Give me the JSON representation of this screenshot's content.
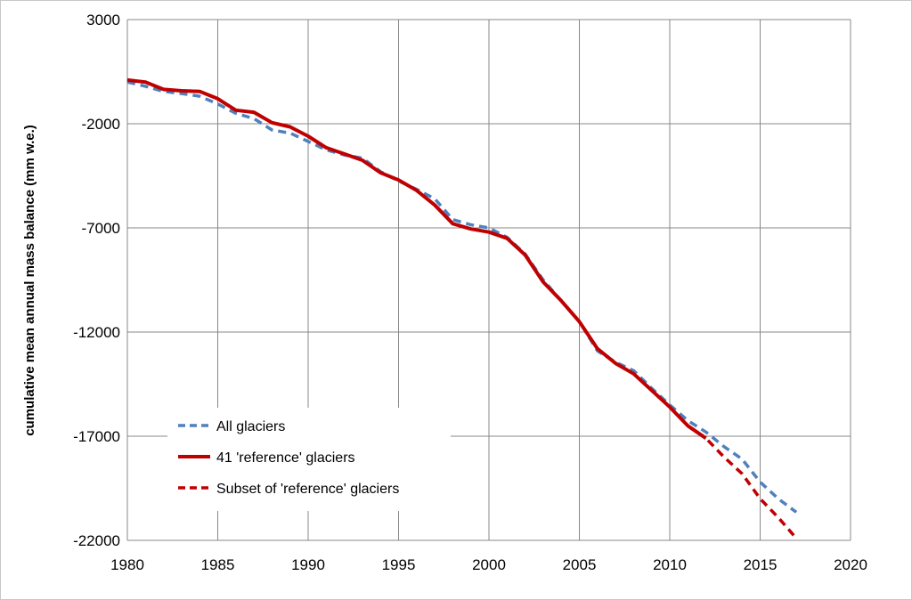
{
  "chart_data": {
    "type": "line",
    "title": "",
    "xlabel": "",
    "ylabel": "cumulative mean annual mass balance (mm w.e.)",
    "xlim": [
      1980,
      2020
    ],
    "ylim": [
      -22000,
      3000
    ],
    "xticks": [
      1980,
      1985,
      1990,
      1995,
      2000,
      2005,
      2010,
      2015,
      2020
    ],
    "yticks": [
      3000,
      -2000,
      -7000,
      -12000,
      -17000,
      -22000
    ],
    "grid": true,
    "legend_position": "bottom-left",
    "series": [
      {
        "name": "All glaciers",
        "color": "#4f81bd",
        "style": "dashed",
        "points": [
          [
            1980,
            0
          ],
          [
            1981,
            -200
          ],
          [
            1982,
            -450
          ],
          [
            1983,
            -550
          ],
          [
            1984,
            -680
          ],
          [
            1985,
            -1050
          ],
          [
            1986,
            -1500
          ],
          [
            1987,
            -1750
          ],
          [
            1988,
            -2300
          ],
          [
            1989,
            -2450
          ],
          [
            1990,
            -2850
          ],
          [
            1991,
            -3250
          ],
          [
            1992,
            -3500
          ],
          [
            1993,
            -3650
          ],
          [
            1994,
            -4300
          ],
          [
            1995,
            -4750
          ],
          [
            1996,
            -5150
          ],
          [
            1997,
            -5600
          ],
          [
            1998,
            -6600
          ],
          [
            1999,
            -6850
          ],
          [
            2000,
            -7000
          ],
          [
            2001,
            -7450
          ],
          [
            2002,
            -8250
          ],
          [
            2003,
            -9500
          ],
          [
            2004,
            -10500
          ],
          [
            2005,
            -11500
          ],
          [
            2006,
            -12900
          ],
          [
            2007,
            -13450
          ],
          [
            2008,
            -13850
          ],
          [
            2009,
            -14700
          ],
          [
            2010,
            -15500
          ],
          [
            2011,
            -16250
          ],
          [
            2012,
            -16800
          ],
          [
            2013,
            -17500
          ],
          [
            2014,
            -18100
          ],
          [
            2015,
            -19200
          ],
          [
            2016,
            -20000
          ],
          [
            2017,
            -20650
          ]
        ]
      },
      {
        "name": "41 'reference' glaciers",
        "color": "#c00000",
        "style": "solid",
        "points": [
          [
            1980,
            100
          ],
          [
            1981,
            0
          ],
          [
            1982,
            -350
          ],
          [
            1983,
            -420
          ],
          [
            1984,
            -450
          ],
          [
            1985,
            -800
          ],
          [
            1986,
            -1350
          ],
          [
            1987,
            -1450
          ],
          [
            1988,
            -1950
          ],
          [
            1989,
            -2150
          ],
          [
            1990,
            -2600
          ],
          [
            1991,
            -3150
          ],
          [
            1992,
            -3450
          ],
          [
            1993,
            -3750
          ],
          [
            1994,
            -4350
          ],
          [
            1995,
            -4700
          ],
          [
            1996,
            -5200
          ],
          [
            1997,
            -5900
          ],
          [
            1998,
            -6800
          ],
          [
            1999,
            -7050
          ],
          [
            2000,
            -7200
          ],
          [
            2001,
            -7500
          ],
          [
            2002,
            -8300
          ],
          [
            2003,
            -9600
          ],
          [
            2004,
            -10500
          ],
          [
            2005,
            -11500
          ],
          [
            2006,
            -12800
          ],
          [
            2007,
            -13500
          ],
          [
            2008,
            -14000
          ],
          [
            2009,
            -14800
          ],
          [
            2010,
            -15600
          ],
          [
            2011,
            -16500
          ],
          [
            2012,
            -17100
          ]
        ]
      },
      {
        "name": "Subset of 'reference' glaciers",
        "color": "#c00000",
        "style": "dashed",
        "points": [
          [
            1980,
            100
          ],
          [
            1981,
            0
          ],
          [
            1982,
            -350
          ],
          [
            1983,
            -420
          ],
          [
            1984,
            -450
          ],
          [
            1985,
            -800
          ],
          [
            1986,
            -1350
          ],
          [
            1987,
            -1450
          ],
          [
            1988,
            -1950
          ],
          [
            1989,
            -2150
          ],
          [
            1990,
            -2600
          ],
          [
            1991,
            -3150
          ],
          [
            1992,
            -3450
          ],
          [
            1993,
            -3750
          ],
          [
            1994,
            -4350
          ],
          [
            1995,
            -4700
          ],
          [
            1996,
            -5200
          ],
          [
            1997,
            -5900
          ],
          [
            1998,
            -6800
          ],
          [
            1999,
            -7050
          ],
          [
            2000,
            -7200
          ],
          [
            2001,
            -7500
          ],
          [
            2002,
            -8300
          ],
          [
            2003,
            -9600
          ],
          [
            2004,
            -10500
          ],
          [
            2005,
            -11500
          ],
          [
            2006,
            -12800
          ],
          [
            2007,
            -13500
          ],
          [
            2008,
            -14000
          ],
          [
            2009,
            -14800
          ],
          [
            2010,
            -15600
          ],
          [
            2011,
            -16500
          ],
          [
            2012,
            -17100
          ],
          [
            2013,
            -18000
          ],
          [
            2014,
            -18800
          ],
          [
            2015,
            -20000
          ],
          [
            2016,
            -20900
          ],
          [
            2017,
            -21900
          ]
        ]
      }
    ]
  }
}
